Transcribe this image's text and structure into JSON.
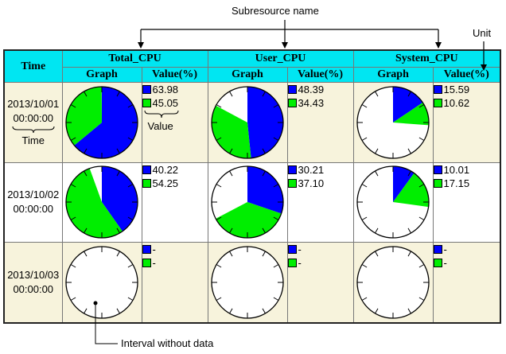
{
  "annotations": {
    "subresource_name": "Subresource name",
    "unit": "Unit",
    "value": "Value",
    "time": "Time",
    "interval_without_data": "Interval without data"
  },
  "table": {
    "time_header": "Time",
    "graph_header": "Graph",
    "value_header": "Value(%)",
    "groups": [
      "Total_CPU",
      "User_CPU",
      "System_CPU"
    ],
    "rows": [
      {
        "date": "2013/10/01",
        "time": "00:00:00",
        "cells": [
          {
            "blue": "63.98",
            "green": "45.05",
            "blue_pct": 63.98,
            "green_pct": 45.05
          },
          {
            "blue": "48.39",
            "green": "34.43",
            "blue_pct": 48.39,
            "green_pct": 34.43
          },
          {
            "blue": "15.59",
            "green": "10.62",
            "blue_pct": 15.59,
            "green_pct": 10.62
          }
        ]
      },
      {
        "date": "2013/10/02",
        "time": "00:00:00",
        "cells": [
          {
            "blue": "40.22",
            "green": "54.25",
            "blue_pct": 40.22,
            "green_pct": 54.25
          },
          {
            "blue": "30.21",
            "green": "37.10",
            "blue_pct": 30.21,
            "green_pct": 37.1
          },
          {
            "blue": "10.01",
            "green": "17.15",
            "blue_pct": 10.01,
            "green_pct": 17.15
          }
        ]
      },
      {
        "date": "2013/10/03",
        "time": "00:00:00",
        "cells": [
          {
            "blue": "-",
            "green": "-",
            "blue_pct": null,
            "green_pct": null
          },
          {
            "blue": "-",
            "green": "-",
            "blue_pct": null,
            "green_pct": null
          },
          {
            "blue": "-",
            "green": "-",
            "blue_pct": null,
            "green_pct": null
          }
        ]
      }
    ]
  },
  "colors": {
    "header": "#00e6f2",
    "row_tint": "#f7f3dc",
    "blue": "#0000ff",
    "green": "#00ee00"
  }
}
